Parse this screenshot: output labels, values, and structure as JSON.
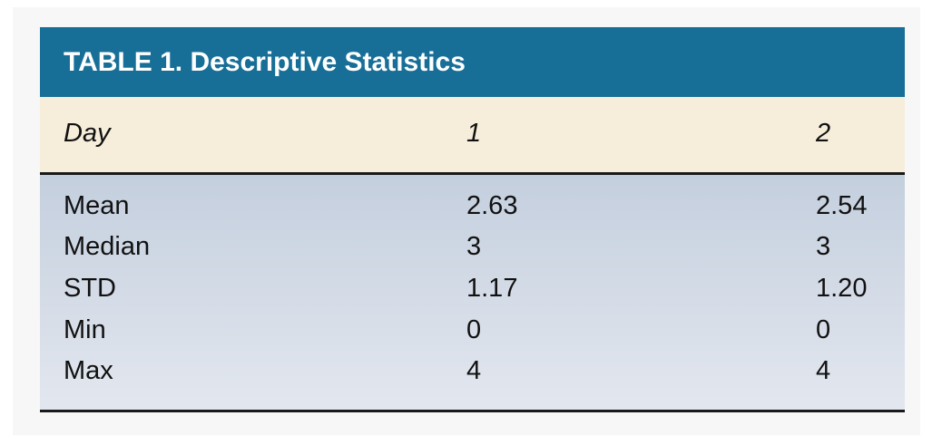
{
  "header": {
    "title": "TABLE 1. Descriptive Statistics"
  },
  "table": {
    "columns": [
      "Day",
      "1",
      "2"
    ],
    "rows": [
      [
        "Mean",
        "2.63",
        "2.54"
      ],
      [
        "Median",
        "3",
        "3"
      ],
      [
        "STD",
        "1.17",
        "1.20"
      ],
      [
        "Min",
        "0",
        "0"
      ],
      [
        "Max",
        "4",
        "4"
      ]
    ]
  }
}
